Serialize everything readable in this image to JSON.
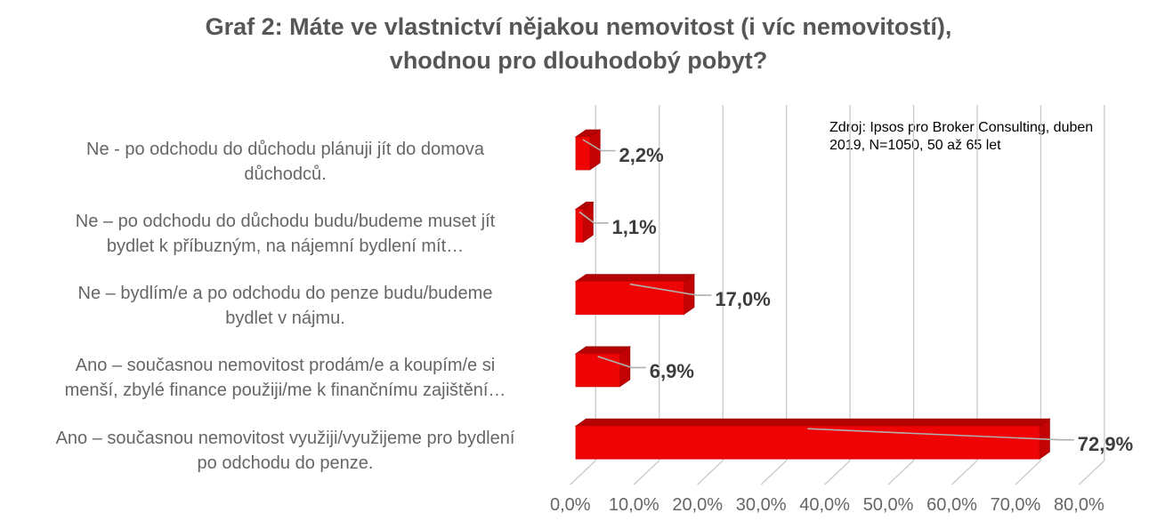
{
  "title": {
    "text": "Graf 2: Máte ve vlastnictví nějakou nemovitost (i víc nemovitostí), vhodnou pro dlouhodobý pobyt?",
    "lines": [
      "Graf 2: Máte ve vlastnictví nějakou nemovitost (i víc nemovitostí),",
      "vhodnou pro dlouhodobý pobyt?"
    ]
  },
  "source_note": {
    "text": "Zdroj: Ipsos pro Broker Consulting, duben 2019, N=1050, 50 až 65 let",
    "lines": [
      "Zdroj: Ipsos pro Broker Consulting, duben",
      "2019, N=1050, 50 až 65 let"
    ]
  },
  "chart_data": {
    "type": "bar",
    "orientation": "horizontal",
    "style": "3d",
    "title": "Graf 2: Máte ve vlastnictví nějakou nemovitost (i víc nemovitostí), vhodnou pro dlouhodobý pobyt?",
    "categories": [
      "Ne - po odchodu do důchodu plánuji jít do domova důchodců.",
      "Ne – po odchodu do důchodu budu/budeme muset jít bydlet k příbuzným, na nájemní bydlení mít…",
      "Ne – bydlím/e a po odchodu do penze budu/budeme bydlet v nájmu.",
      "Ano – současnou nemovitost prodám/e a koupím/e si menší, zbylé finance použiji/me k finančnímu zajištění…",
      "Ano – současnou nemovitost využiji/využijeme pro bydlení po odchodu do penze."
    ],
    "categories_wrapped": [
      [
        "Ne - po odchodu do důchodu plánuji jít do domova",
        "důchodců."
      ],
      [
        "Ne – po odchodu do důchodu budu/budeme muset jít",
        "bydlet k příbuzným, na nájemní bydlení mít…"
      ],
      [
        "Ne – bydlím/e a po odchodu do penze budu/budeme",
        "bydlet v nájmu."
      ],
      [
        "Ano – současnou nemovitost prodám/e a koupím/e si",
        "menší, zbylé finance použiji/me k finančnímu zajištění…"
      ],
      [
        "Ano – současnou nemovitost využiji/využijeme pro bydlení",
        "po odchodu do penze."
      ]
    ],
    "values": [
      2.2,
      1.1,
      17.0,
      6.9,
      72.9
    ],
    "value_labels": [
      "2,2%",
      "1,1%",
      "17,0%",
      "6,9%",
      "72,9%"
    ],
    "xlabel": "",
    "ylabel": "",
    "x_axis": {
      "range": [
        0,
        80
      ],
      "tick_step": 10,
      "tick_labels": [
        "0,0%",
        "10,0%",
        "20,0%",
        "30,0%",
        "40,0%",
        "50,0%",
        "60,0%",
        "70,0%",
        "80,0%"
      ],
      "gridlines": true
    },
    "legend": "none",
    "colors": {
      "bar_front": "#ee0404",
      "bar_top": "#b50303",
      "bar_side": "#c30303",
      "bar_edge": "#9c0202",
      "gridline": "#cccccc",
      "leader_line": "#b0b0b0",
      "title_text": "#565656",
      "category_text": "#666666",
      "tick_text": "#666666",
      "value_text": "#3d3d3d",
      "source_text": "#000000",
      "background": "#ffffff"
    }
  }
}
